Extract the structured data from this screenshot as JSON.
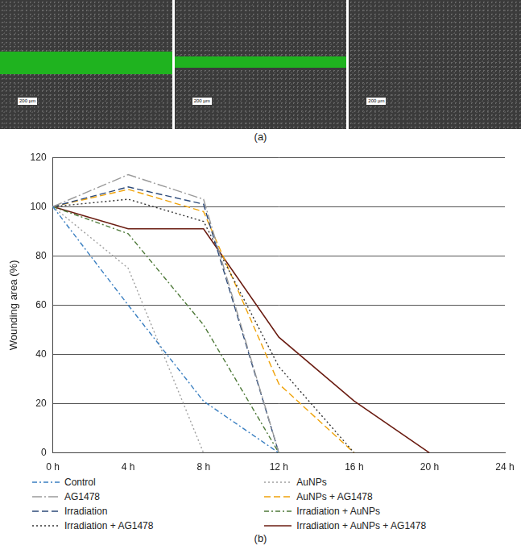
{
  "figure": {
    "panel_a": {
      "label": "(a)",
      "scale_bars": [
        "200 µm",
        "200 µm",
        "200 µm"
      ]
    },
    "panel_b": {
      "label": "(b)"
    }
  },
  "chart_data": {
    "type": "line",
    "y_label": "Wounding area (%)",
    "categories": [
      "0 h",
      "4 h",
      "8 h",
      "12 h",
      "16 h",
      "20 h",
      "24 h"
    ],
    "ylim": [
      0,
      120
    ],
    "yticks": [
      0,
      20,
      40,
      60,
      80,
      100,
      120
    ],
    "grid": true,
    "series": [
      {
        "name": "Control",
        "color": "#3a7fc1",
        "line_style": "dash_dot",
        "values": [
          100,
          60,
          21,
          0,
          null,
          null,
          null
        ]
      },
      {
        "name": "AG1478",
        "color": "#9a9a9a",
        "line_style": "long_dash_dot",
        "values": [
          100,
          113,
          103,
          0,
          null,
          null,
          null
        ]
      },
      {
        "name": "Irradiation",
        "color": "#2e4b7a",
        "line_style": "dashed",
        "values": [
          100,
          108,
          101,
          0,
          null,
          null,
          null
        ]
      },
      {
        "name": "Irradiation + AG1478",
        "color": "#333333",
        "line_style": "dotted",
        "values": [
          100,
          103,
          94,
          35,
          0,
          null,
          null
        ]
      },
      {
        "name": "AuNPs",
        "color": "#a0a0a0",
        "line_style": "dotted",
        "values": [
          100,
          75,
          0,
          null,
          null,
          null,
          null
        ]
      },
      {
        "name": "AuNPs + AG1478",
        "color": "#f0a30a",
        "line_style": "dashed",
        "values": [
          100,
          107,
          98,
          28,
          0,
          null,
          null
        ]
      },
      {
        "name": "Irradiation + AuNPs",
        "color": "#4f7a3a",
        "line_style": "dash_dot",
        "values": [
          100,
          89,
          52,
          0,
          null,
          null,
          null
        ]
      },
      {
        "name": "Irradiation + AuNPs + AG1478",
        "color": "#6b1d12",
        "line_style": "solid",
        "values": [
          100,
          91,
          91,
          47,
          21,
          0,
          null
        ]
      }
    ]
  }
}
